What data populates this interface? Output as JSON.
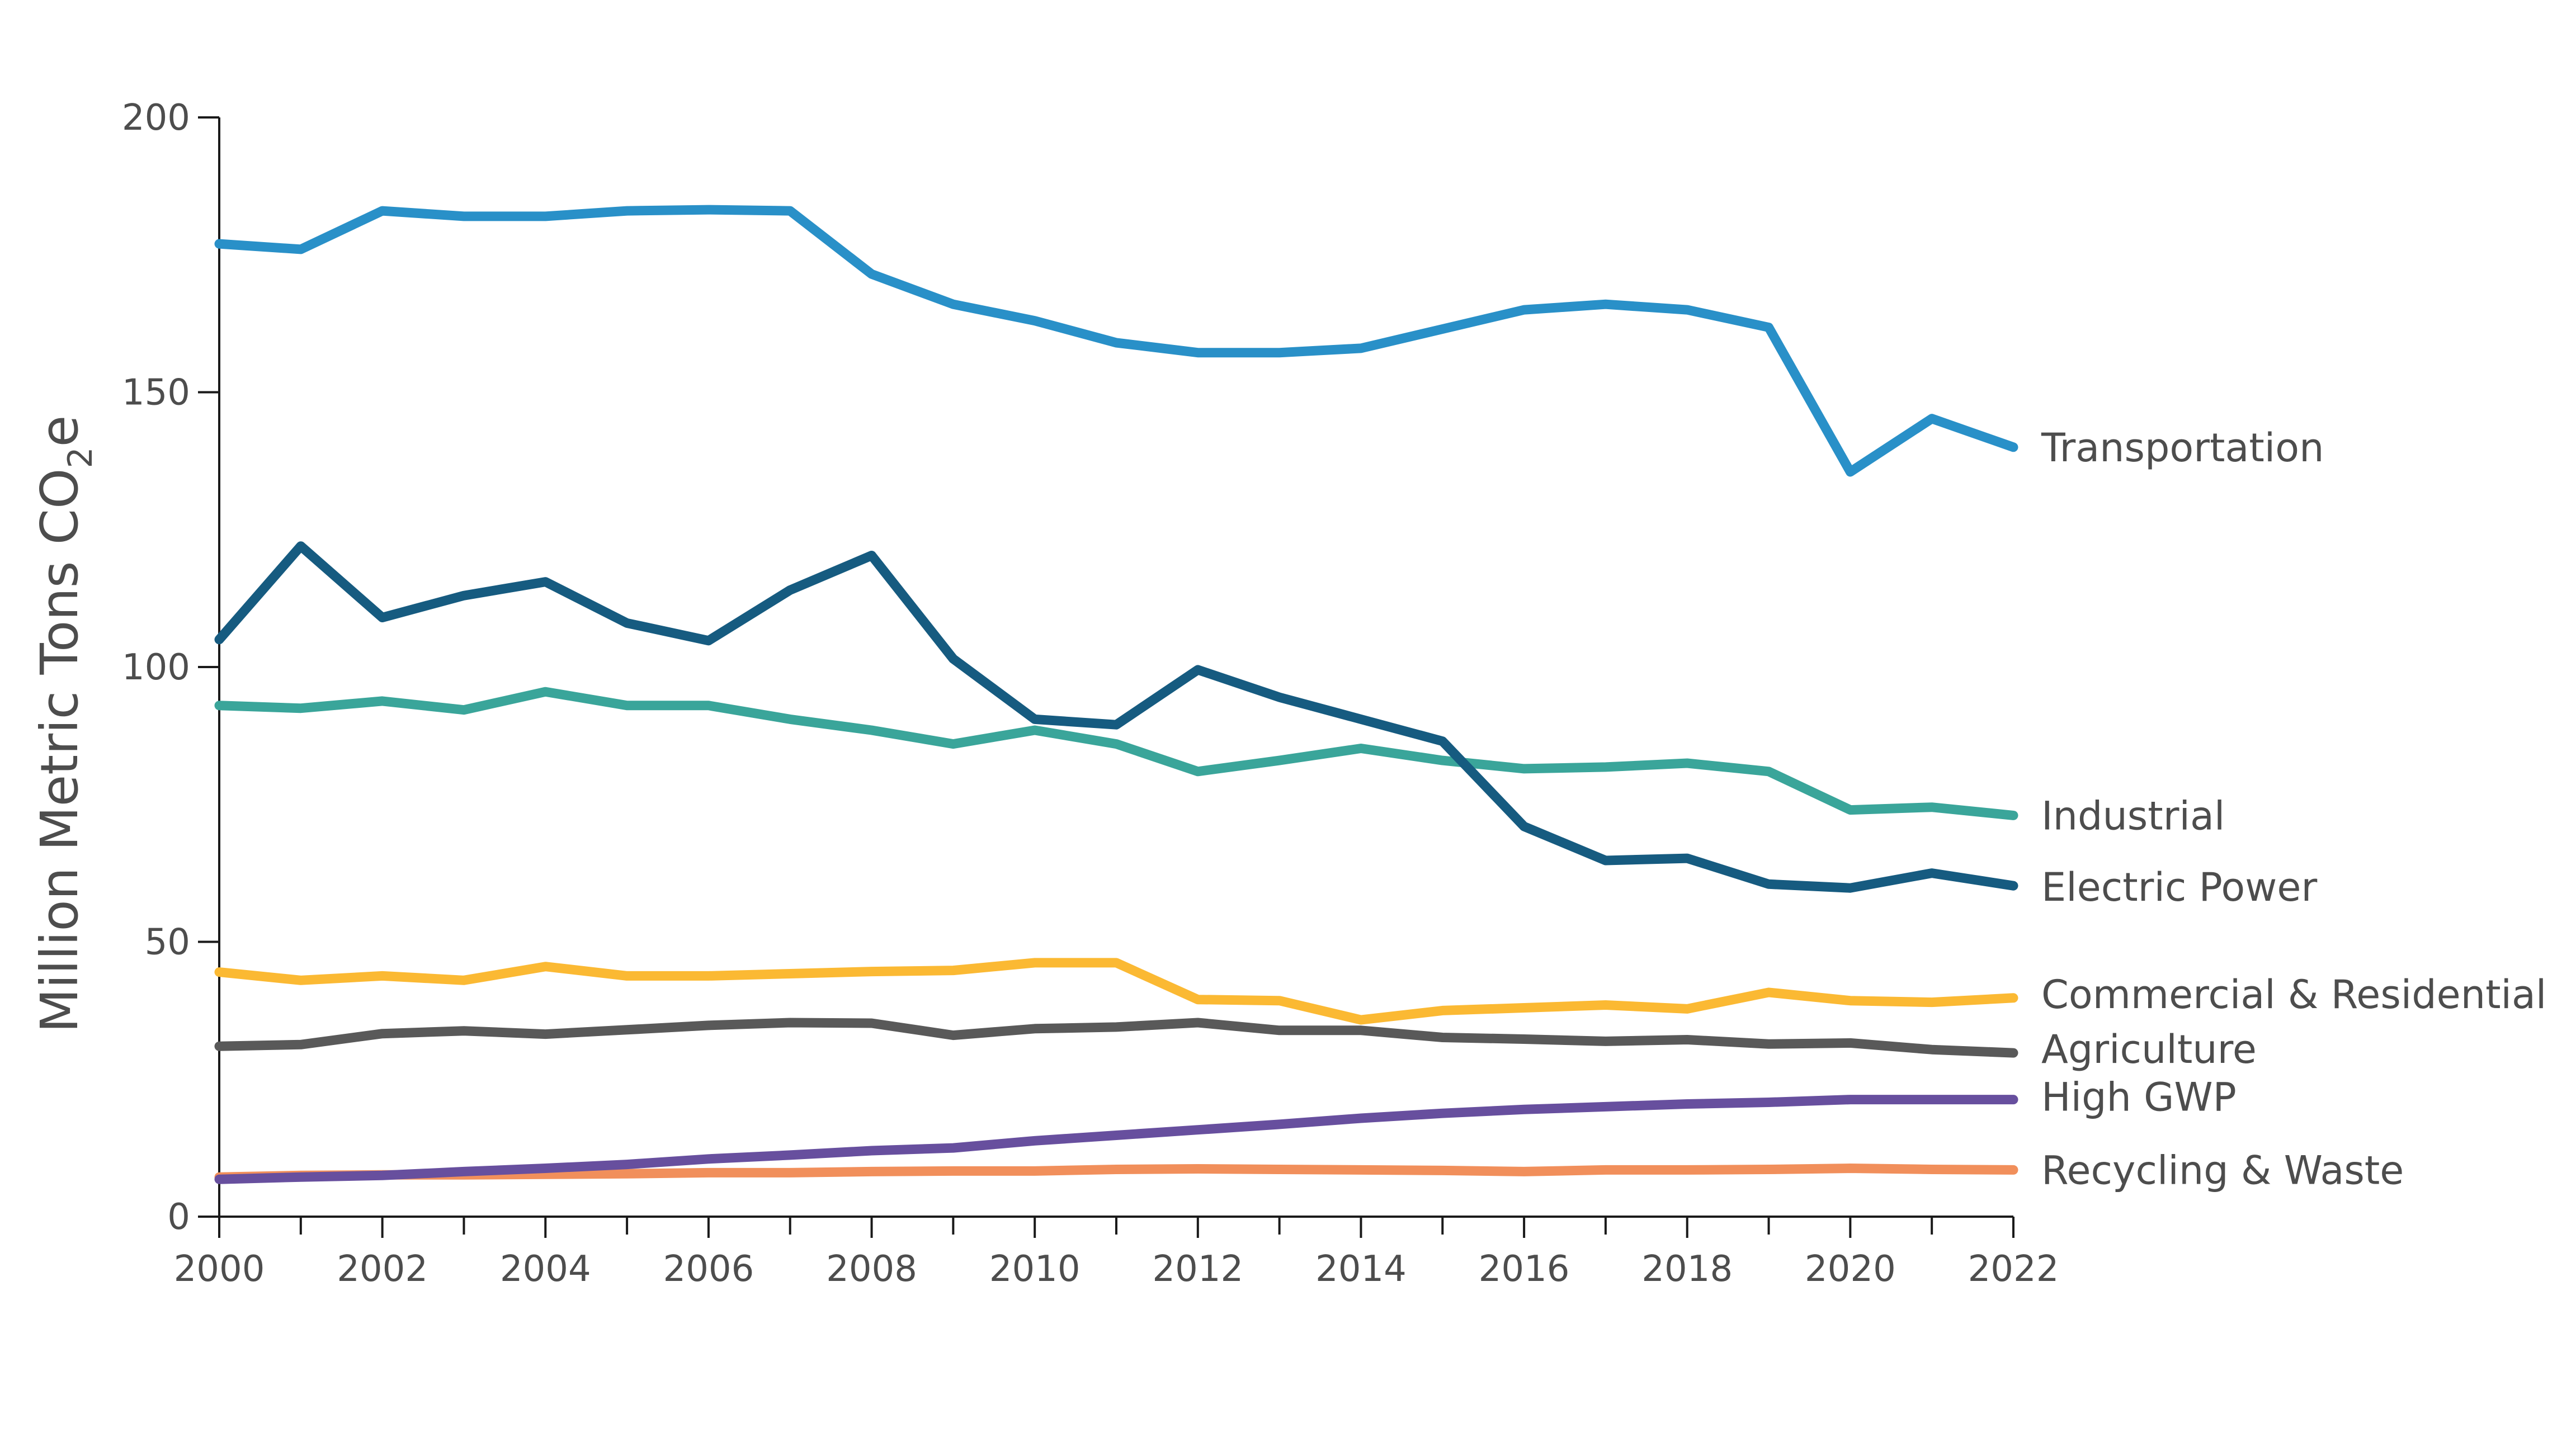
{
  "chart_data": {
    "type": "line",
    "ylabel": "Million Metric Tons CO",
    "ylabel_subscript": "2",
    "ylabel_suffix": "e",
    "ylim": [
      0,
      200
    ],
    "yticks": [
      0,
      50,
      100,
      150,
      200
    ],
    "xlim": [
      2000,
      2022
    ],
    "xticks_labeled": [
      2000,
      2002,
      2004,
      2006,
      2008,
      2010,
      2012,
      2014,
      2016,
      2018,
      2020,
      2022
    ],
    "grid": false,
    "legend": "inline labels at line ends",
    "x": [
      2000,
      2001,
      2002,
      2003,
      2004,
      2005,
      2006,
      2007,
      2008,
      2009,
      2010,
      2011,
      2012,
      2013,
      2014,
      2015,
      2016,
      2017,
      2018,
      2019,
      2020,
      2021,
      2022
    ],
    "series": [
      {
        "name": "Transportation",
        "color": "#2990c8",
        "values": [
          177,
          176,
          183,
          182,
          182,
          183,
          183.2,
          183,
          171.5,
          166,
          163,
          159,
          157.2,
          157.2,
          158,
          161.5,
          165,
          166,
          165,
          161.8,
          135.5,
          145.2,
          140
        ]
      },
      {
        "name": "Industrial",
        "color": "#3aa59a",
        "values": [
          93,
          92.5,
          93.8,
          92.2,
          95.5,
          93,
          93,
          90.5,
          88.5,
          86,
          88.5,
          86,
          81,
          83,
          85.2,
          83,
          81.5,
          81.8,
          82.5,
          81,
          74,
          74.5,
          73
        ]
      },
      {
        "name": "Electric Power",
        "color": "#165b80",
        "values": [
          105,
          122,
          109,
          113,
          115.5,
          108,
          104.8,
          114,
          120.3,
          101.5,
          90.5,
          89.5,
          99.5,
          94.5,
          90.5,
          86.5,
          71,
          64.8,
          65.2,
          60.5,
          59.8,
          62.5,
          60.2
        ]
      },
      {
        "name": "Commercial & Residential",
        "color": "#fbb933",
        "values": [
          44.5,
          43,
          43.8,
          43,
          45.5,
          43.8,
          43.8,
          44.2,
          44.6,
          44.8,
          46.2,
          46.2,
          39.5,
          39.3,
          35.8,
          37.5,
          38,
          38.5,
          37.8,
          40.8,
          39.3,
          39,
          39.8
        ]
      },
      {
        "name": "Agriculture",
        "color": "#595959",
        "values": [
          31,
          31.3,
          33.3,
          33.8,
          33.2,
          34,
          34.8,
          35.3,
          35.2,
          33,
          34.2,
          34.5,
          35.3,
          33.9,
          33.9,
          32.6,
          32.3,
          31.9,
          32.2,
          31.4,
          31.6,
          30.4,
          29.8
        ]
      },
      {
        "name": "High GWP",
        "color": "#674f9e",
        "values": [
          6.8,
          7.2,
          7.5,
          8.2,
          8.8,
          9.5,
          10.5,
          11.2,
          12,
          12.5,
          13.8,
          14.8,
          15.8,
          16.8,
          17.9,
          18.8,
          19.5,
          20,
          20.5,
          20.8,
          21.3,
          21.3,
          21.3
        ]
      },
      {
        "name": "Recycling & Waste",
        "color": "#f18f5b",
        "values": [
          7.2,
          7.5,
          7.6,
          7.6,
          7.7,
          7.8,
          8,
          8,
          8.2,
          8.3,
          8.3,
          8.6,
          8.7,
          8.6,
          8.5,
          8.4,
          8.2,
          8.5,
          8.5,
          8.6,
          8.8,
          8.6,
          8.5
        ]
      }
    ],
    "label_values": {
      "Transportation": 140,
      "Industrial": 73,
      "Electric Power": 60,
      "Commercial & Residential": 40.5,
      "Agriculture": 30.5,
      "High GWP": 21.8,
      "Recycling & Waste": 8.5
    }
  }
}
